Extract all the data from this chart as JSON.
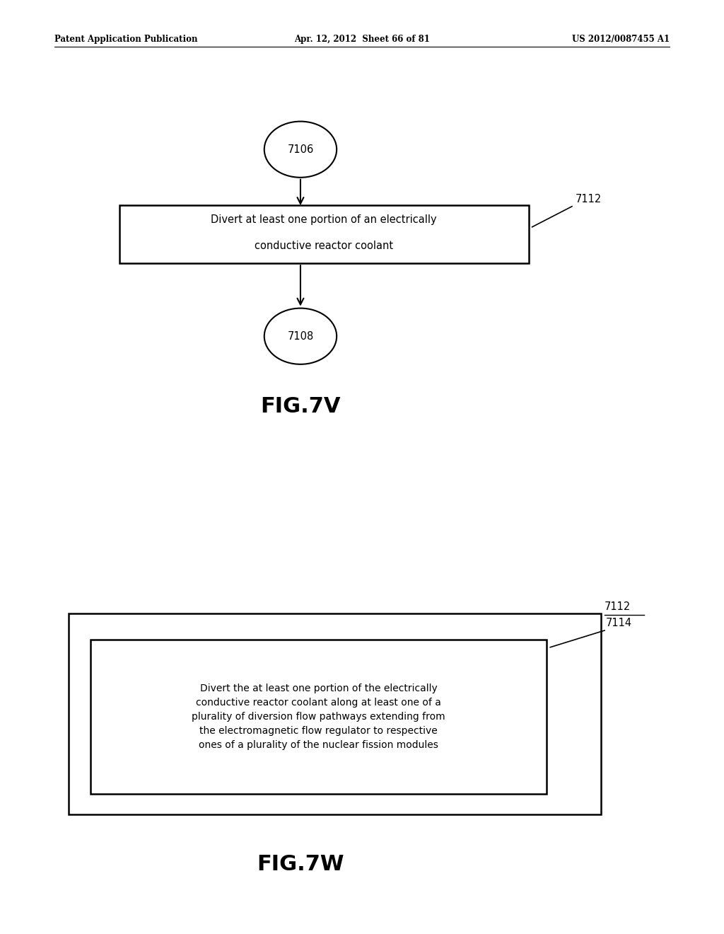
{
  "bg_color": "#ffffff",
  "header_left": "Patent Application Publication",
  "header_center": "Apr. 12, 2012  Sheet 66 of 81",
  "header_right": "US 2012/0087455 A1",
  "fig7v_label": "FIG.7V",
  "fig7w_label": "FIG.7W",
  "node_7106_label": "7106",
  "node_7108_label": "7108",
  "box_7112_label": "7112",
  "box_7112_text_line1": "Divert at least one portion of an electrically",
  "box_7112_text_line2": "conductive reactor coolant",
  "outer_box_label": "7112",
  "inner_box_label": "7114",
  "inner_box_text": "Divert the at least one portion of the electrically\nconductive reactor coolant along at least one of a\nplurality of diversion flow pathways extending from\nthe electromagnetic flow regulator to respective\nones of a plurality of the nuclear fission modules"
}
